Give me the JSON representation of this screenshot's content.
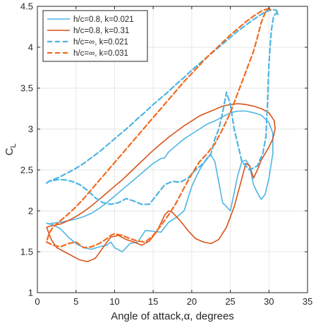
{
  "chart_data": {
    "type": "line",
    "title": "",
    "xlabel": "Angle of attack,α, degrees",
    "ylabel": "C",
    "ylabel_subscript": "L",
    "xlim": [
      0,
      35
    ],
    "ylim": [
      1,
      4.5
    ],
    "xticks": [
      0,
      5,
      10,
      15,
      20,
      25,
      30,
      35
    ],
    "yticks": [
      1,
      1.5,
      2,
      2.5,
      3,
      3.5,
      4,
      4.5
    ],
    "xtick_labels": [
      "0",
      "5",
      "10",
      "15",
      "20",
      "25",
      "30",
      "35"
    ],
    "ytick_labels": [
      "1",
      "1.5",
      "2",
      "2.5",
      "3",
      "3.5",
      "4",
      "4.5"
    ],
    "grid": true,
    "legend_position": "top-left",
    "series": [
      {
        "name": "h/c=0.8, k=0.021",
        "color": "#4db5e3",
        "style": "solid",
        "x": [
          1.2,
          2,
          3,
          4,
          5,
          6,
          7,
          8,
          9,
          9.5,
          10,
          11,
          12,
          13,
          14,
          15,
          16,
          17,
          18,
          19,
          20,
          21,
          22,
          22.5,
          23,
          23.5,
          24,
          25,
          26,
          26.5,
          27,
          27.5,
          28,
          28.5,
          29,
          29.5,
          30,
          30.5,
          30.5,
          30,
          29,
          28,
          27,
          26,
          25,
          24,
          23,
          22,
          21,
          20,
          19,
          18,
          17,
          16.5,
          16,
          15,
          14,
          13,
          12,
          11,
          10,
          9,
          8,
          7,
          6,
          5,
          4,
          3,
          2,
          1.5,
          1.2
        ],
        "y": [
          1.85,
          1.83,
          1.78,
          1.68,
          1.6,
          1.55,
          1.53,
          1.56,
          1.58,
          1.62,
          1.55,
          1.5,
          1.6,
          1.62,
          1.76,
          1.75,
          1.74,
          1.86,
          1.92,
          2.0,
          2.3,
          2.5,
          2.65,
          2.68,
          2.6,
          2.35,
          2.1,
          2.0,
          2.45,
          2.6,
          2.62,
          2.55,
          2.32,
          2.22,
          2.14,
          2.2,
          2.4,
          2.7,
          2.95,
          3.08,
          3.17,
          3.2,
          3.22,
          3.22,
          3.2,
          3.15,
          3.1,
          3.06,
          3.0,
          2.94,
          2.88,
          2.8,
          2.72,
          2.65,
          2.64,
          2.58,
          2.5,
          2.42,
          2.34,
          2.26,
          2.18,
          2.1,
          2.03,
          1.97,
          1.93,
          1.9,
          1.88,
          1.86,
          1.85,
          1.84,
          1.85
        ]
      },
      {
        "name": "h/c=0.8, k=0.31",
        "color": "#d95219",
        "style": "solid",
        "x": [
          1.2,
          1.8,
          2.5,
          3.5,
          4.5,
          5.5,
          6.5,
          7.5,
          8.5,
          9.5,
          10.5,
          11.5,
          12.5,
          13.5,
          14.5,
          15.5,
          16.5,
          17,
          17.5,
          18.5,
          19.5,
          20.5,
          21.5,
          22.5,
          23.5,
          24.5,
          25.5,
          26.5,
          27,
          27.5,
          28,
          28.5,
          29,
          29.5,
          30,
          30.5,
          30.8,
          30.7,
          30,
          29,
          28,
          27,
          26,
          25,
          24,
          23,
          22,
          21,
          20,
          19,
          18,
          17,
          16,
          15,
          14,
          13,
          12,
          11,
          10,
          9,
          8,
          7,
          6,
          5,
          4,
          3,
          2,
          1.5,
          1.2
        ],
        "y": [
          1.8,
          1.65,
          1.55,
          1.5,
          1.45,
          1.4,
          1.38,
          1.42,
          1.55,
          1.68,
          1.7,
          1.65,
          1.62,
          1.58,
          1.63,
          1.75,
          1.95,
          2.0,
          1.98,
          1.88,
          1.76,
          1.66,
          1.62,
          1.6,
          1.65,
          1.8,
          2.05,
          2.4,
          2.58,
          2.55,
          2.4,
          2.5,
          2.62,
          2.7,
          2.78,
          2.88,
          3.0,
          3.1,
          3.2,
          3.25,
          3.28,
          3.3,
          3.31,
          3.3,
          3.28,
          3.24,
          3.2,
          3.16,
          3.1,
          3.04,
          2.97,
          2.9,
          2.82,
          2.74,
          2.65,
          2.56,
          2.47,
          2.38,
          2.3,
          2.22,
          2.14,
          2.06,
          1.99,
          1.93,
          1.88,
          1.84,
          1.82,
          1.81,
          1.8
        ]
      },
      {
        "name": "h/c=∞, k=0.021",
        "color": "#4db5e3",
        "style": "dashed",
        "x": [
          1.2,
          1.5,
          2.5,
          3.5,
          4.5,
          5.5,
          6.5,
          7.5,
          8.5,
          9.5,
          10.5,
          11.5,
          12.5,
          13.5,
          14.5,
          15.5,
          16.5,
          17.5,
          18.5,
          19.5,
          20.5,
          21.5,
          22.5,
          23,
          23.5,
          24,
          24.5,
          25,
          25.5,
          26.5,
          27.5,
          28.5,
          29.2,
          29.6,
          29.8,
          30,
          30.3,
          30.6,
          31,
          31.2,
          31,
          30.5,
          30,
          29.5,
          29,
          28,
          27,
          26,
          25,
          24,
          23,
          22,
          21,
          20,
          19,
          18,
          17,
          16,
          15,
          14,
          13,
          12,
          11,
          10,
          9,
          8,
          7,
          6,
          5,
          4,
          3,
          2.5,
          2,
          1.5,
          1.2
        ],
        "y": [
          2.34,
          2.36,
          2.38,
          2.38,
          2.36,
          2.32,
          2.25,
          2.16,
          2.1,
          2.08,
          2.1,
          2.15,
          2.12,
          2.08,
          2.08,
          2.2,
          2.32,
          2.36,
          2.35,
          2.4,
          2.5,
          2.58,
          2.7,
          2.88,
          3.0,
          3.2,
          3.45,
          3.3,
          3.0,
          2.6,
          2.5,
          2.55,
          2.7,
          2.9,
          3.3,
          3.8,
          4.2,
          4.38,
          4.42,
          4.4,
          4.45,
          4.46,
          4.45,
          4.43,
          4.4,
          4.34,
          4.27,
          4.2,
          4.12,
          4.04,
          3.96,
          3.88,
          3.8,
          3.72,
          3.63,
          3.55,
          3.46,
          3.38,
          3.3,
          3.21,
          3.13,
          3.04,
          2.96,
          2.88,
          2.8,
          2.72,
          2.65,
          2.58,
          2.52,
          2.47,
          2.42,
          2.4,
          2.38,
          2.36,
          2.34
        ]
      },
      {
        "name": "h/c=∞, k=0.031",
        "color": "#f26a1f",
        "style": "dashed",
        "x": [
          1.2,
          2,
          3,
          4,
          5,
          6,
          7,
          8,
          9,
          9.5,
          10,
          11,
          12,
          13,
          14,
          15,
          16,
          17,
          18,
          19,
          20,
          21,
          22,
          23,
          24,
          25,
          26,
          27,
          28,
          28.5,
          29,
          29.5,
          30,
          30.2,
          30,
          29.5,
          29,
          28,
          27,
          26,
          25,
          24,
          23,
          22,
          21,
          20,
          19,
          18,
          17,
          16,
          15,
          14,
          13,
          12,
          11,
          10,
          9,
          8,
          7,
          6,
          5,
          4,
          3,
          2,
          1.5,
          1.2
        ],
        "y": [
          1.62,
          1.58,
          1.56,
          1.6,
          1.62,
          1.55,
          1.56,
          1.6,
          1.66,
          1.7,
          1.72,
          1.7,
          1.66,
          1.63,
          1.62,
          1.7,
          1.82,
          1.95,
          2.1,
          2.28,
          2.45,
          2.6,
          2.7,
          2.82,
          3.0,
          3.2,
          3.45,
          3.7,
          3.95,
          4.12,
          4.3,
          4.42,
          4.48,
          4.45,
          4.47,
          4.46,
          4.44,
          4.38,
          4.31,
          4.23,
          4.15,
          4.06,
          3.97,
          3.88,
          3.78,
          3.68,
          3.58,
          3.47,
          3.36,
          3.25,
          3.14,
          3.03,
          2.92,
          2.81,
          2.7,
          2.59,
          2.48,
          2.37,
          2.26,
          2.15,
          2.05,
          1.96,
          1.88,
          1.8,
          1.72,
          1.62
        ]
      }
    ]
  }
}
